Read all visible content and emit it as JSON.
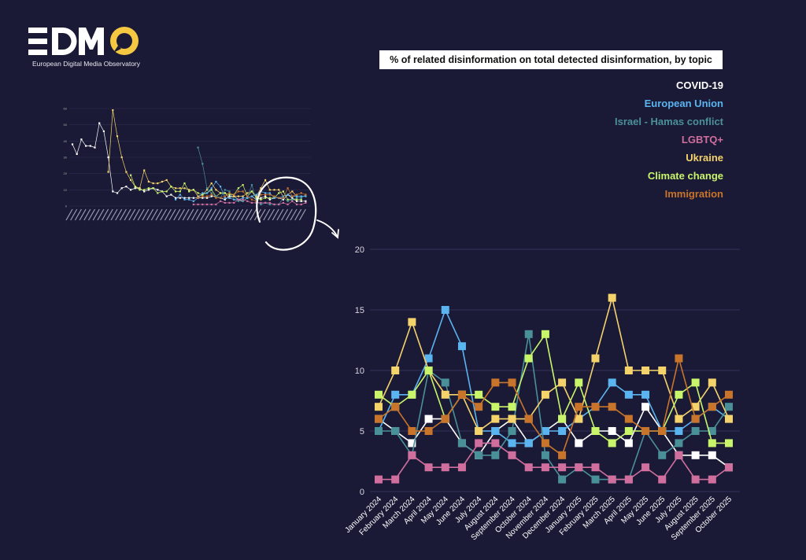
{
  "brand": {
    "logo_text": "EDMO",
    "subtitle": "European Digital Media Observatory",
    "accent": "#f5c842"
  },
  "background": "#1b1a36",
  "chart_data": [
    {
      "type": "line",
      "title": "% of related disinformation on total detected disinformation, by topic",
      "xlabel": "",
      "ylabel": "",
      "ylim": [
        0,
        20
      ],
      "yticks": [
        "0",
        "5",
        "10",
        "15",
        "20"
      ],
      "grid": true,
      "legend_position": "top-right",
      "marker": "square",
      "categories": [
        "January 2024",
        "February 2024",
        "March 2024",
        "April 2024",
        "May 2024",
        "June 2024",
        "July 2024",
        "August 2024",
        "September 2024",
        "October 2024",
        "November 2024",
        "December 2024",
        "January 2025",
        "February 2025",
        "March 2025",
        "April 2025",
        "May 2025",
        "June 2025",
        "July 2025",
        "August 2025",
        "September 2025",
        "October 2025"
      ],
      "series": [
        {
          "name": "COVID-19",
          "color": "#ffffff",
          "values": [
            6,
            5,
            4,
            6,
            6,
            4,
            3,
            5,
            6,
            4,
            5,
            6,
            4,
            5,
            5,
            4,
            7,
            5,
            3,
            3,
            3,
            2
          ]
        },
        {
          "name": "European Union",
          "color": "#5ab4f0",
          "values": [
            5,
            8,
            8,
            11,
            15,
            12,
            5,
            5,
            4,
            4,
            5,
            5,
            6,
            7,
            9,
            8,
            8,
            5,
            5,
            6,
            7,
            6
          ]
        },
        {
          "name": "Israel - Hamas conflict",
          "color": "#4a9098",
          "values": [
            5,
            5,
            3,
            10,
            9,
            4,
            3,
            3,
            5,
            13,
            3,
            1,
            2,
            1,
            1,
            1,
            5,
            3,
            4,
            5,
            5,
            7
          ]
        },
        {
          "name": "LGBTQ+",
          "color": "#d06e9e",
          "values": [
            1,
            1,
            3,
            2,
            2,
            2,
            4,
            4,
            3,
            2,
            2,
            2,
            2,
            2,
            1,
            1,
            2,
            1,
            3,
            1,
            1,
            2
          ]
        },
        {
          "name": "Ukraine",
          "color": "#f5d36b",
          "values": [
            7,
            10,
            14,
            10,
            8,
            8,
            5,
            6,
            6,
            6,
            8,
            9,
            6,
            11,
            16,
            10,
            10,
            10,
            6,
            7,
            9,
            6
          ]
        },
        {
          "name": "Climate change",
          "color": "#c8f56a",
          "values": [
            8,
            7,
            8,
            10,
            6,
            8,
            8,
            7,
            7,
            11,
            13,
            6,
            9,
            5,
            4,
            5,
            5,
            5,
            8,
            9,
            4,
            4
          ]
        },
        {
          "name": "Immigration",
          "color": "#c8742a",
          "values": [
            6,
            7,
            5,
            5,
            6,
            8,
            7,
            9,
            9,
            6,
            4,
            3,
            7,
            7,
            7,
            6,
            5,
            5,
            11,
            6,
            7,
            8
          ]
        }
      ]
    },
    {
      "type": "line",
      "ylim": [
        0,
        60
      ],
      "yticks": [
        "0",
        "10",
        "20",
        "30",
        "40",
        "50",
        "60"
      ],
      "series": [
        {
          "name": "COVID-19",
          "color": "#ffffff",
          "offset": 0,
          "values": [
            38,
            32,
            41,
            37,
            37,
            36,
            51,
            46,
            30,
            9,
            8,
            11,
            12,
            10,
            11,
            11,
            9,
            10,
            11,
            10,
            9,
            6,
            7,
            5,
            5,
            5,
            5,
            5,
            5,
            5,
            5,
            6,
            6,
            5,
            4,
            6,
            6,
            4,
            3,
            5,
            6,
            4,
            5,
            6,
            4,
            5,
            5,
            4,
            7,
            5,
            3,
            3,
            3
          ]
        },
        {
          "name": "Ukraine",
          "color": "#f5d36b",
          "offset": 8,
          "values": [
            21,
            59,
            43,
            30,
            21,
            16,
            12,
            11,
            22,
            15,
            14,
            14,
            15,
            16,
            12,
            11,
            11,
            11,
            10,
            10,
            6,
            7,
            10,
            14,
            10,
            8,
            8,
            5,
            6,
            6,
            6,
            8,
            9,
            6,
            11,
            16,
            10,
            10,
            10,
            6,
            7,
            9,
            6,
            6
          ]
        },
        {
          "name": "Climate change",
          "color": "#c8f56a",
          "offset": 13,
          "values": [
            19,
            12,
            10,
            10,
            11,
            11,
            8,
            9,
            9,
            12,
            9,
            9,
            14,
            9,
            10,
            8,
            7,
            8,
            10,
            6,
            8,
            8,
            7,
            7,
            11,
            13,
            6,
            9,
            5,
            4,
            5,
            5,
            5,
            8,
            9,
            4,
            4,
            4,
            4
          ]
        },
        {
          "name": "Israel - Hamas conflict",
          "color": "#4a9098",
          "offset": 28,
          "values": [
            36,
            26,
            11,
            8,
            6,
            5,
            10,
            9,
            4,
            3,
            3,
            5,
            13,
            3,
            1,
            2,
            1,
            1,
            1,
            5,
            3,
            4,
            5,
            5,
            7
          ]
        },
        {
          "name": "European Union",
          "color": "#5ab4f0",
          "offset": 23,
          "values": [
            4,
            7,
            4,
            4,
            3,
            5,
            8,
            8,
            11,
            15,
            12,
            5,
            5,
            4,
            4,
            5,
            5,
            6,
            7,
            9,
            8,
            8,
            5,
            5,
            6,
            7,
            6,
            6,
            6,
            6
          ]
        },
        {
          "name": "LGBTQ+",
          "color": "#d06e9e",
          "offset": 27,
          "values": [
            1,
            1,
            1,
            1,
            1,
            1,
            3,
            2,
            2,
            2,
            4,
            4,
            3,
            2,
            2,
            2,
            2,
            2,
            1,
            1,
            2,
            1,
            3,
            1,
            1,
            2
          ]
        },
        {
          "name": "Immigration",
          "color": "#c8742a",
          "offset": 28,
          "values": [
            5,
            6,
            6,
            7,
            5,
            5,
            6,
            8,
            7,
            9,
            9,
            6,
            4,
            3,
            7,
            7,
            7,
            6,
            5,
            5,
            11,
            6,
            7,
            8,
            7
          ]
        }
      ]
    }
  ]
}
